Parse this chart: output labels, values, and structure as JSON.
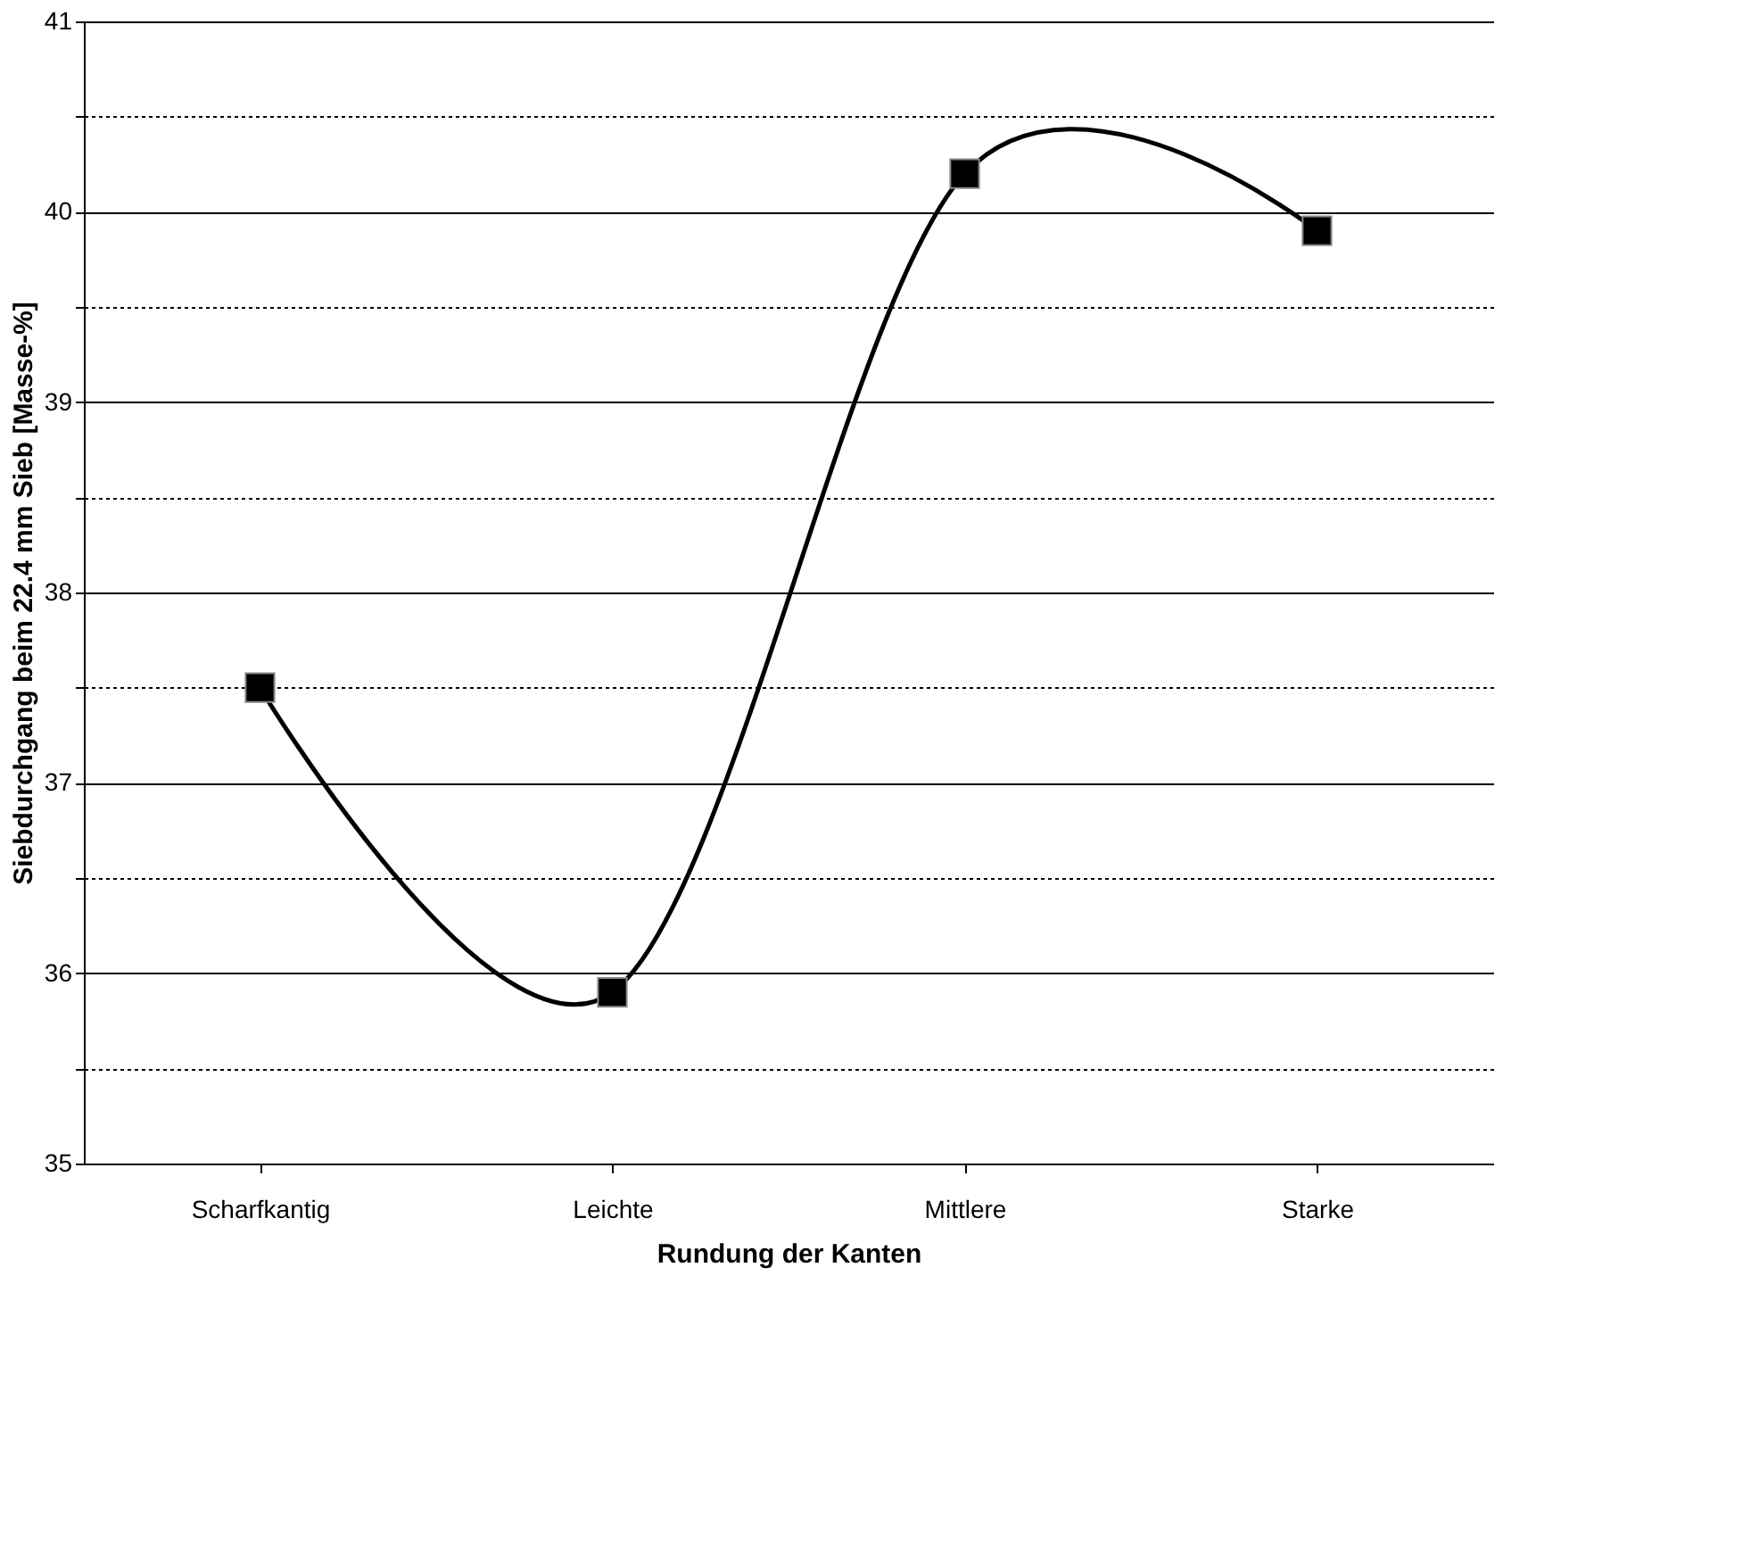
{
  "chart_data": {
    "type": "line",
    "xlabel": "Rundung der Kanten",
    "ylabel": "Siebdurchgang beim 22.4 mm Sieb [Masse-%]",
    "categories": [
      "Scharfkantig",
      "Leichte",
      "Mittlere",
      "Starke"
    ],
    "series": [
      {
        "color": "#000000",
        "values": [
          37.5,
          35.9,
          40.2,
          39.9
        ]
      }
    ],
    "ylim": [
      35,
      41
    ],
    "yticks": [
      35,
      {
        "value": 35.5,
        "label": null
      },
      36,
      {
        "value": 36.5,
        "label": null
      },
      37,
      {
        "value": 37.5,
        "label": null
      },
      38,
      {
        "value": 38.5,
        "label": null
      },
      39,
      {
        "value": 39.5,
        "label": null
      },
      40,
      {
        "value": 40.5,
        "label": null
      },
      41
    ],
    "grid": "y",
    "marker": "square",
    "line_style": "solid"
  }
}
